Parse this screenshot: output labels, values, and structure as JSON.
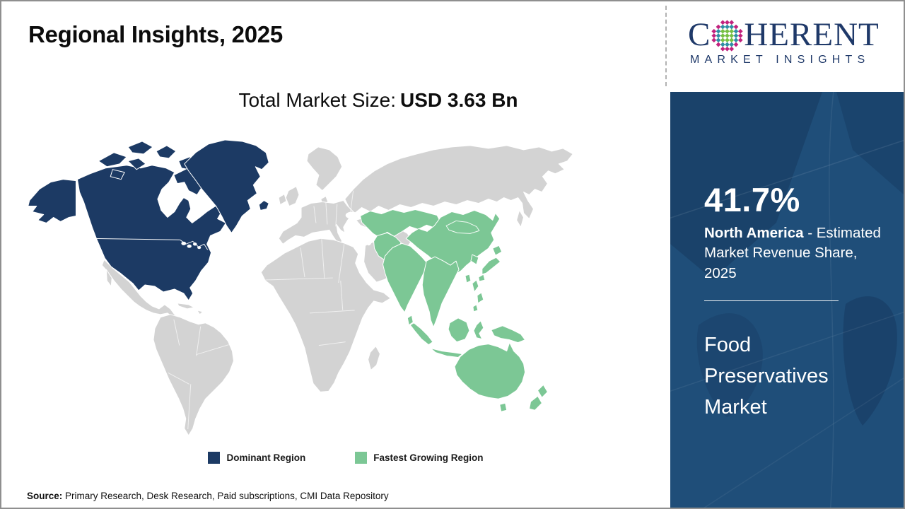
{
  "colors": {
    "dominant": "#1c3a64",
    "fastest_growing": "#7cc795",
    "other_land": "#d3d3d3",
    "sidebar_bg": "#1f4e79",
    "logo_navy": "#1f3969",
    "border_gray": "#8f8f8f"
  },
  "header": {
    "title": "Regional Insights, 2025"
  },
  "logo": {
    "brand_prefix": "C",
    "brand_suffix": "HERENT",
    "tagline": "MARKET INSIGHTS",
    "globe_colors": {
      "inner": "#76c043",
      "mid": "#2e8fa5",
      "outer": "#c2227e"
    }
  },
  "market_size": {
    "label": "Total Market Size:",
    "value": "USD 3.63 Bn"
  },
  "map": {
    "dominant_region": "North America",
    "fastest_growing_region": "Asia Pacific"
  },
  "legend": {
    "items": [
      {
        "label": "Dominant Region",
        "colorKey": "dominant"
      },
      {
        "label": "Fastest Growing Region",
        "colorKey": "fastest_growing"
      }
    ]
  },
  "sidebar": {
    "share_value": "41.7%",
    "share_region": "North America",
    "share_caption_rest": " - Estimated Market Revenue Share, 2025",
    "market_name": "Food Preservatives Market"
  },
  "source": {
    "label": "Source:",
    "text": " Primary Research, Desk Research, Paid subscriptions, CMI Data Repository"
  }
}
